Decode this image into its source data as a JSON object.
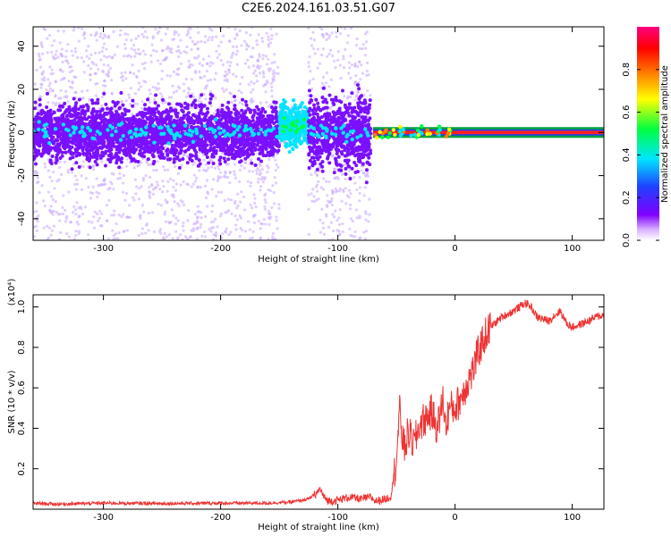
{
  "title": "C2E6.2024.161.03.51.G07",
  "chart_data": [
    {
      "type": "heatmap",
      "xlabel": "Height of straight line (km)",
      "ylabel": "Frequency (Hz)",
      "xlim": [
        -360,
        127
      ],
      "ylim": [
        -50,
        49
      ],
      "xticks": [
        -300,
        -200,
        -100,
        0,
        100
      ],
      "xtick_labels": [
        "-300",
        "-200",
        "-100",
        "0",
        "100"
      ],
      "yticks": [
        -40,
        -20,
        0,
        20,
        40
      ],
      "ytick_labels": [
        "-40",
        "-20",
        "0",
        "20",
        "40"
      ],
      "colorbar": {
        "label": "Normalized spectral amplitude",
        "range": [
          0,
          1
        ],
        "ticks": [
          0.0,
          0.2,
          0.4,
          0.6,
          0.8
        ],
        "tick_labels": [
          "0.0",
          "0.2",
          "0.4",
          "0.6",
          "0.8"
        ],
        "colors": [
          "#ffffff",
          "#d9b3ff",
          "#8000ff",
          "#2040ff",
          "#00e5ff",
          "#00ff40",
          "#ffff00",
          "#ff8000",
          "#ff0000",
          "#ff0080"
        ]
      },
      "regions": [
        {
          "x_range": [
            -360,
            -150
          ],
          "freq_core": [
            -8,
            8
          ],
          "scatter_extent": [
            -50,
            49
          ],
          "amplitude": "low-medium",
          "color": "#7a10ff"
        },
        {
          "x_range": [
            -150,
            -125
          ],
          "freq_core": [
            -3,
            10
          ],
          "scatter_extent": [
            -5,
            12
          ],
          "amplitude": "medium",
          "color": "#00e5ff"
        },
        {
          "x_range": [
            -125,
            -72
          ],
          "freq_core": [
            -10,
            10
          ],
          "scatter_extent": [
            -50,
            49
          ],
          "amplitude": "low-medium",
          "color": "#7a10ff"
        },
        {
          "x_range": [
            -70,
            127
          ],
          "freq_core": [
            -1,
            1
          ],
          "scatter_extent": [
            -3,
            3
          ],
          "amplitude": "high",
          "color": "#ff2020"
        }
      ]
    },
    {
      "type": "line",
      "xlabel": "Height of straight line (km)",
      "ylabel": "SNR (10 * v/v)",
      "scale_label": "(x10⁴)",
      "xlim": [
        -360,
        127
      ],
      "ylim": [
        0,
        1.06
      ],
      "xticks": [
        -300,
        -200,
        -100,
        0,
        100
      ],
      "xtick_labels": [
        "-300",
        "-200",
        "-100",
        "0",
        "100"
      ],
      "yticks": [
        0.2,
        0.4,
        0.6,
        0.8,
        1.0
      ],
      "ytick_labels": [
        "0.2",
        "0.4",
        "0.6",
        "0.8",
        "1.0"
      ],
      "color": "#ee3333",
      "series": [
        {
          "x": [
            -360,
            -340,
            -300,
            -250,
            -200,
            -160,
            -140,
            -125,
            -118,
            -115,
            -112,
            -108,
            -100,
            -90,
            -80,
            -72,
            -68,
            -60,
            -55,
            -50,
            -47,
            -45,
            -43,
            -40,
            -35,
            -30,
            -25,
            -20,
            -15,
            -10,
            -8,
            -5,
            0,
            5,
            10,
            15,
            20,
            25,
            30,
            40,
            50,
            60,
            65,
            70,
            80,
            85,
            90,
            95,
            100,
            110,
            120,
            127
          ],
          "y": [
            0.03,
            0.025,
            0.03,
            0.028,
            0.03,
            0.03,
            0.035,
            0.05,
            0.08,
            0.1,
            0.06,
            0.04,
            0.045,
            0.06,
            0.05,
            0.06,
            0.04,
            0.05,
            0.06,
            0.25,
            0.5,
            0.35,
            0.3,
            0.38,
            0.32,
            0.42,
            0.45,
            0.48,
            0.4,
            0.55,
            0.4,
            0.5,
            0.5,
            0.55,
            0.62,
            0.68,
            0.78,
            0.85,
            0.9,
            0.95,
            0.98,
            1.02,
            1.0,
            0.95,
            0.93,
            0.96,
            0.98,
            0.92,
            0.9,
            0.92,
            0.95,
            0.96
          ]
        }
      ]
    }
  ]
}
